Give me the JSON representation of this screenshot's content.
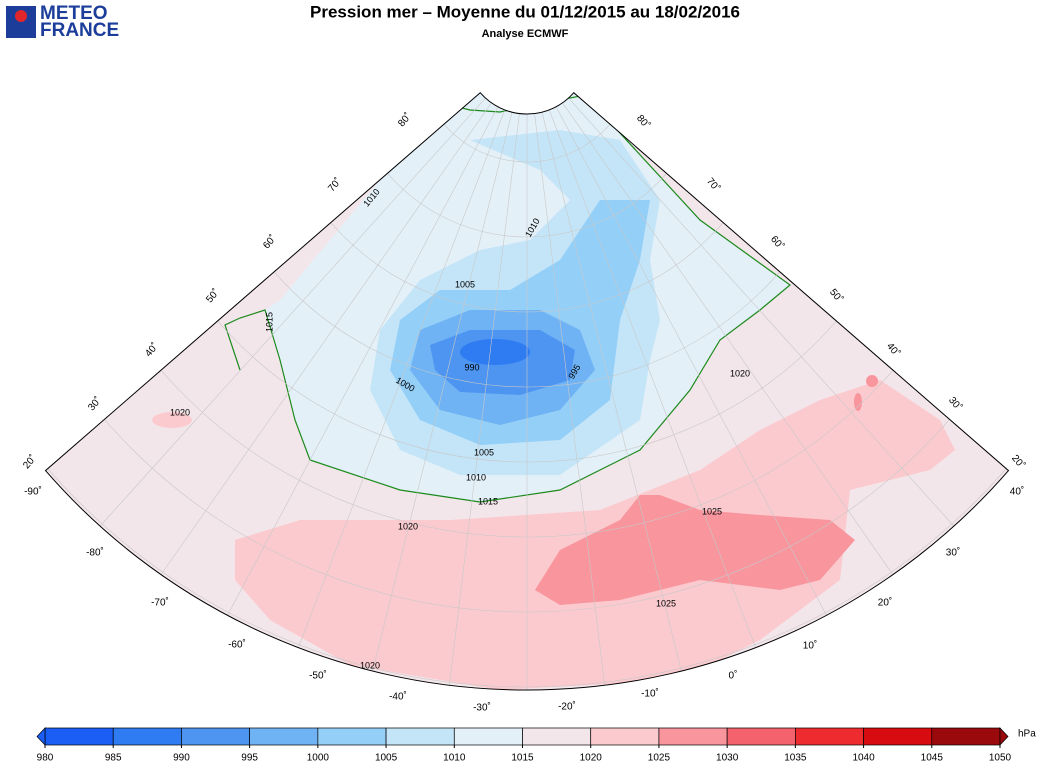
{
  "header": {
    "logo": [
      "METEO",
      "FRANCE"
    ],
    "title": "Pression mer – Moyenne du 01/12/2015 au 18/02/2016",
    "subtitle": "Analyse ECMWF"
  },
  "map": {
    "lat_labels_left": [
      "80˚",
      "70˚",
      "60˚",
      "50˚",
      "40˚",
      "30˚",
      "20˚"
    ],
    "lat_labels_right": [
      "80˚",
      "70˚",
      "60˚",
      "50˚",
      "40˚",
      "30˚",
      "20˚"
    ],
    "lon_labels": [
      "-90˚",
      "-80˚",
      "-70˚",
      "-60˚",
      "-50˚",
      "-40˚",
      "-30˚",
      "-20˚",
      "-10˚",
      "0˚",
      "10˚",
      "20˚",
      "30˚",
      "40˚"
    ],
    "contour_labels": [
      "1015",
      "1010",
      "1010",
      "1005",
      "990",
      "995",
      "1000",
      "1005",
      "1010",
      "1015",
      "1020",
      "1020",
      "1020",
      "1025",
      "1025",
      "1020"
    ],
    "isobar_color": "#1c8a1c"
  },
  "colorbar": {
    "levels": [
      980,
      985,
      990,
      995,
      1000,
      1005,
      1010,
      1015,
      1020,
      1025,
      1030,
      1035,
      1040,
      1045,
      1050
    ],
    "colors": [
      "#1a5ef5",
      "#2f7bf2",
      "#4d95f1",
      "#6fb3f5",
      "#94cff8",
      "#c4e5f8",
      "#e3f0f8",
      "#f3e6eb",
      "#fbcacf",
      "#f8959d",
      "#f4636d",
      "#ee2c30",
      "#d80b10",
      "#9a0a0c"
    ],
    "unit": "hPa"
  }
}
